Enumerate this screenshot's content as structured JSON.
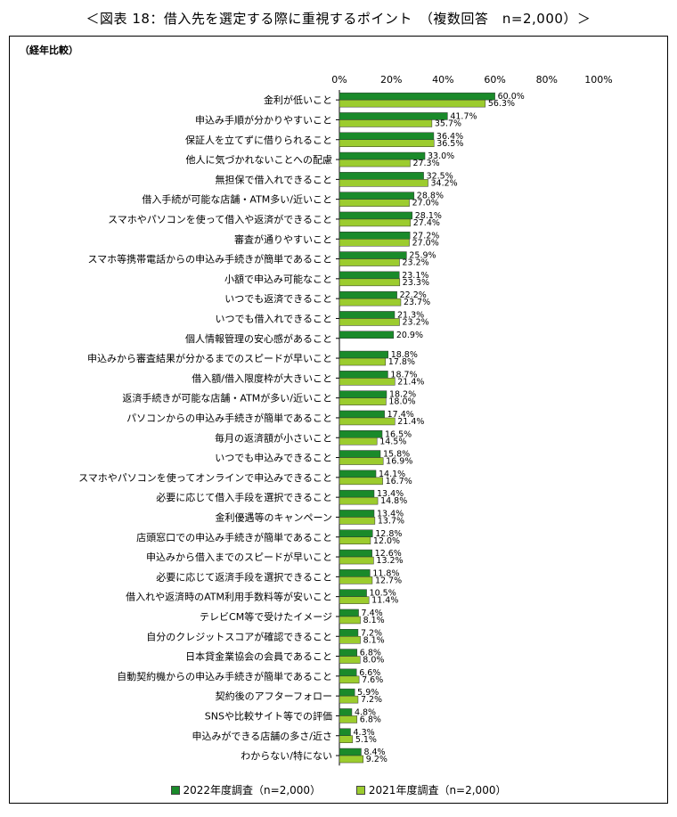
{
  "title": "＜図表 18：借入先を選定する際に重視するポイント　（複数回答　n=2,000）＞",
  "subtitle": "（経年比較）",
  "colors": {
    "series_2022": "#1a8a2a",
    "series_2021": "#9ccc2e"
  },
  "chart_data": {
    "type": "bar",
    "orientation": "horizontal",
    "xlim": [
      0,
      100
    ],
    "ticks": [
      "0%",
      "20%",
      "40%",
      "60%",
      "80%",
      "100%"
    ],
    "tick_values": [
      0,
      20,
      40,
      60,
      80,
      100
    ],
    "grid": false,
    "legend_position": "bottom",
    "categories": [
      "金利が低いこと",
      "申込み手順が分かりやすいこと",
      "保証人を立てずに借りられること",
      "他人に気づかれないことへの配慮",
      "無担保で借入れできること",
      "借入手続が可能な店舗・ATM多い/近いこと",
      "スマホやパソコンを使って借入や返済ができること",
      "審査が通りやすいこと",
      "スマホ等携帯電話からの申込み手続きが簡単であること",
      "小額で申込み可能なこと",
      "いつでも返済できること",
      "いつでも借入れできること",
      "個人情報管理の安心感があること",
      "申込みから審査結果が分かるまでのスピードが早いこと",
      "借入額/借入限度枠が大きいこと",
      "返済手続きが可能な店舗・ATMが多い/近いこと",
      "パソコンからの申込み手続きが簡単であること",
      "毎月の返済額が小さいこと",
      "いつでも申込みできること",
      "スマホやパソコンを使ってオンラインで申込みできること",
      "必要に応じて借入手段を選択できること",
      "金利優遇等のキャンペーン",
      "店頭窓口での申込み手続きが簡単であること",
      "申込みから借入までのスピードが早いこと",
      "必要に応じて返済手段を選択できること",
      "借入れや返済時のATM利用手数料等が安いこと",
      "テレビCM等で受けたイメージ",
      "自分のクレジットスコアが確認できること",
      "日本貸金業協会の会員であること",
      "自動契約機からの申込み手続きが簡単であること",
      "契約後のアフターフォロー",
      "SNSや比較サイト等での評価",
      "申込みができる店舗の多さ/近さ",
      "わからない/特にない"
    ],
    "series": [
      {
        "name": "2022年度調査（n=2,000）",
        "values": [
          60.0,
          41.7,
          36.4,
          33.0,
          32.5,
          28.8,
          28.1,
          27.2,
          25.9,
          23.1,
          22.2,
          21.3,
          20.9,
          18.8,
          18.7,
          18.2,
          17.4,
          16.5,
          15.8,
          14.1,
          13.4,
          13.4,
          12.8,
          12.6,
          11.8,
          10.5,
          7.4,
          7.2,
          6.8,
          6.6,
          5.9,
          4.8,
          4.3,
          8.4
        ],
        "labels": [
          "60.0%",
          "41.7%",
          "36.4%",
          "33.0%",
          "32.5%",
          "28.8%",
          "28.1%",
          "27.2%",
          "25.9%",
          "23.1%",
          "22.2%",
          "21.3%",
          "20.9%",
          "18.8%",
          "18.7%",
          "18.2%",
          "17.4%",
          "16.5%",
          "15.8%",
          "14.1%",
          "13.4%",
          "13.4%",
          "12.8%",
          "12.6%",
          "11.8%",
          "10.5%",
          "7.4%",
          "7.2%",
          "6.8%",
          "6.6%",
          "5.9%",
          "4.8%",
          "4.3%",
          "8.4%"
        ]
      },
      {
        "name": "2021年度調査（n=2,000）",
        "values": [
          56.3,
          35.7,
          36.5,
          27.3,
          34.2,
          27.0,
          27.4,
          27.0,
          23.2,
          23.3,
          23.7,
          23.2,
          null,
          17.8,
          21.4,
          18.0,
          21.4,
          14.5,
          16.9,
          16.7,
          14.8,
          13.7,
          12.0,
          13.2,
          12.7,
          11.4,
          8.1,
          8.1,
          8.0,
          7.6,
          7.2,
          6.8,
          5.1,
          9.2
        ],
        "labels": [
          "56.3%",
          "35.7%",
          "36.5%",
          "27.3%",
          "34.2%",
          "27.0%",
          "27.4%",
          "27.0%",
          "23.2%",
          "23.3%",
          "23.7%",
          "23.2%",
          "",
          "17.8%",
          "21.4%",
          "18.0%",
          "21.4%",
          "14.5%",
          "16.9%",
          "16.7%",
          "14.8%",
          "13.7%",
          "12.0%",
          "13.2%",
          "12.7%",
          "11.4%",
          "8.1%",
          "8.1%",
          "8.0%",
          "7.6%",
          "7.2%",
          "6.8%",
          "5.1%",
          "9.2%"
        ]
      }
    ]
  }
}
